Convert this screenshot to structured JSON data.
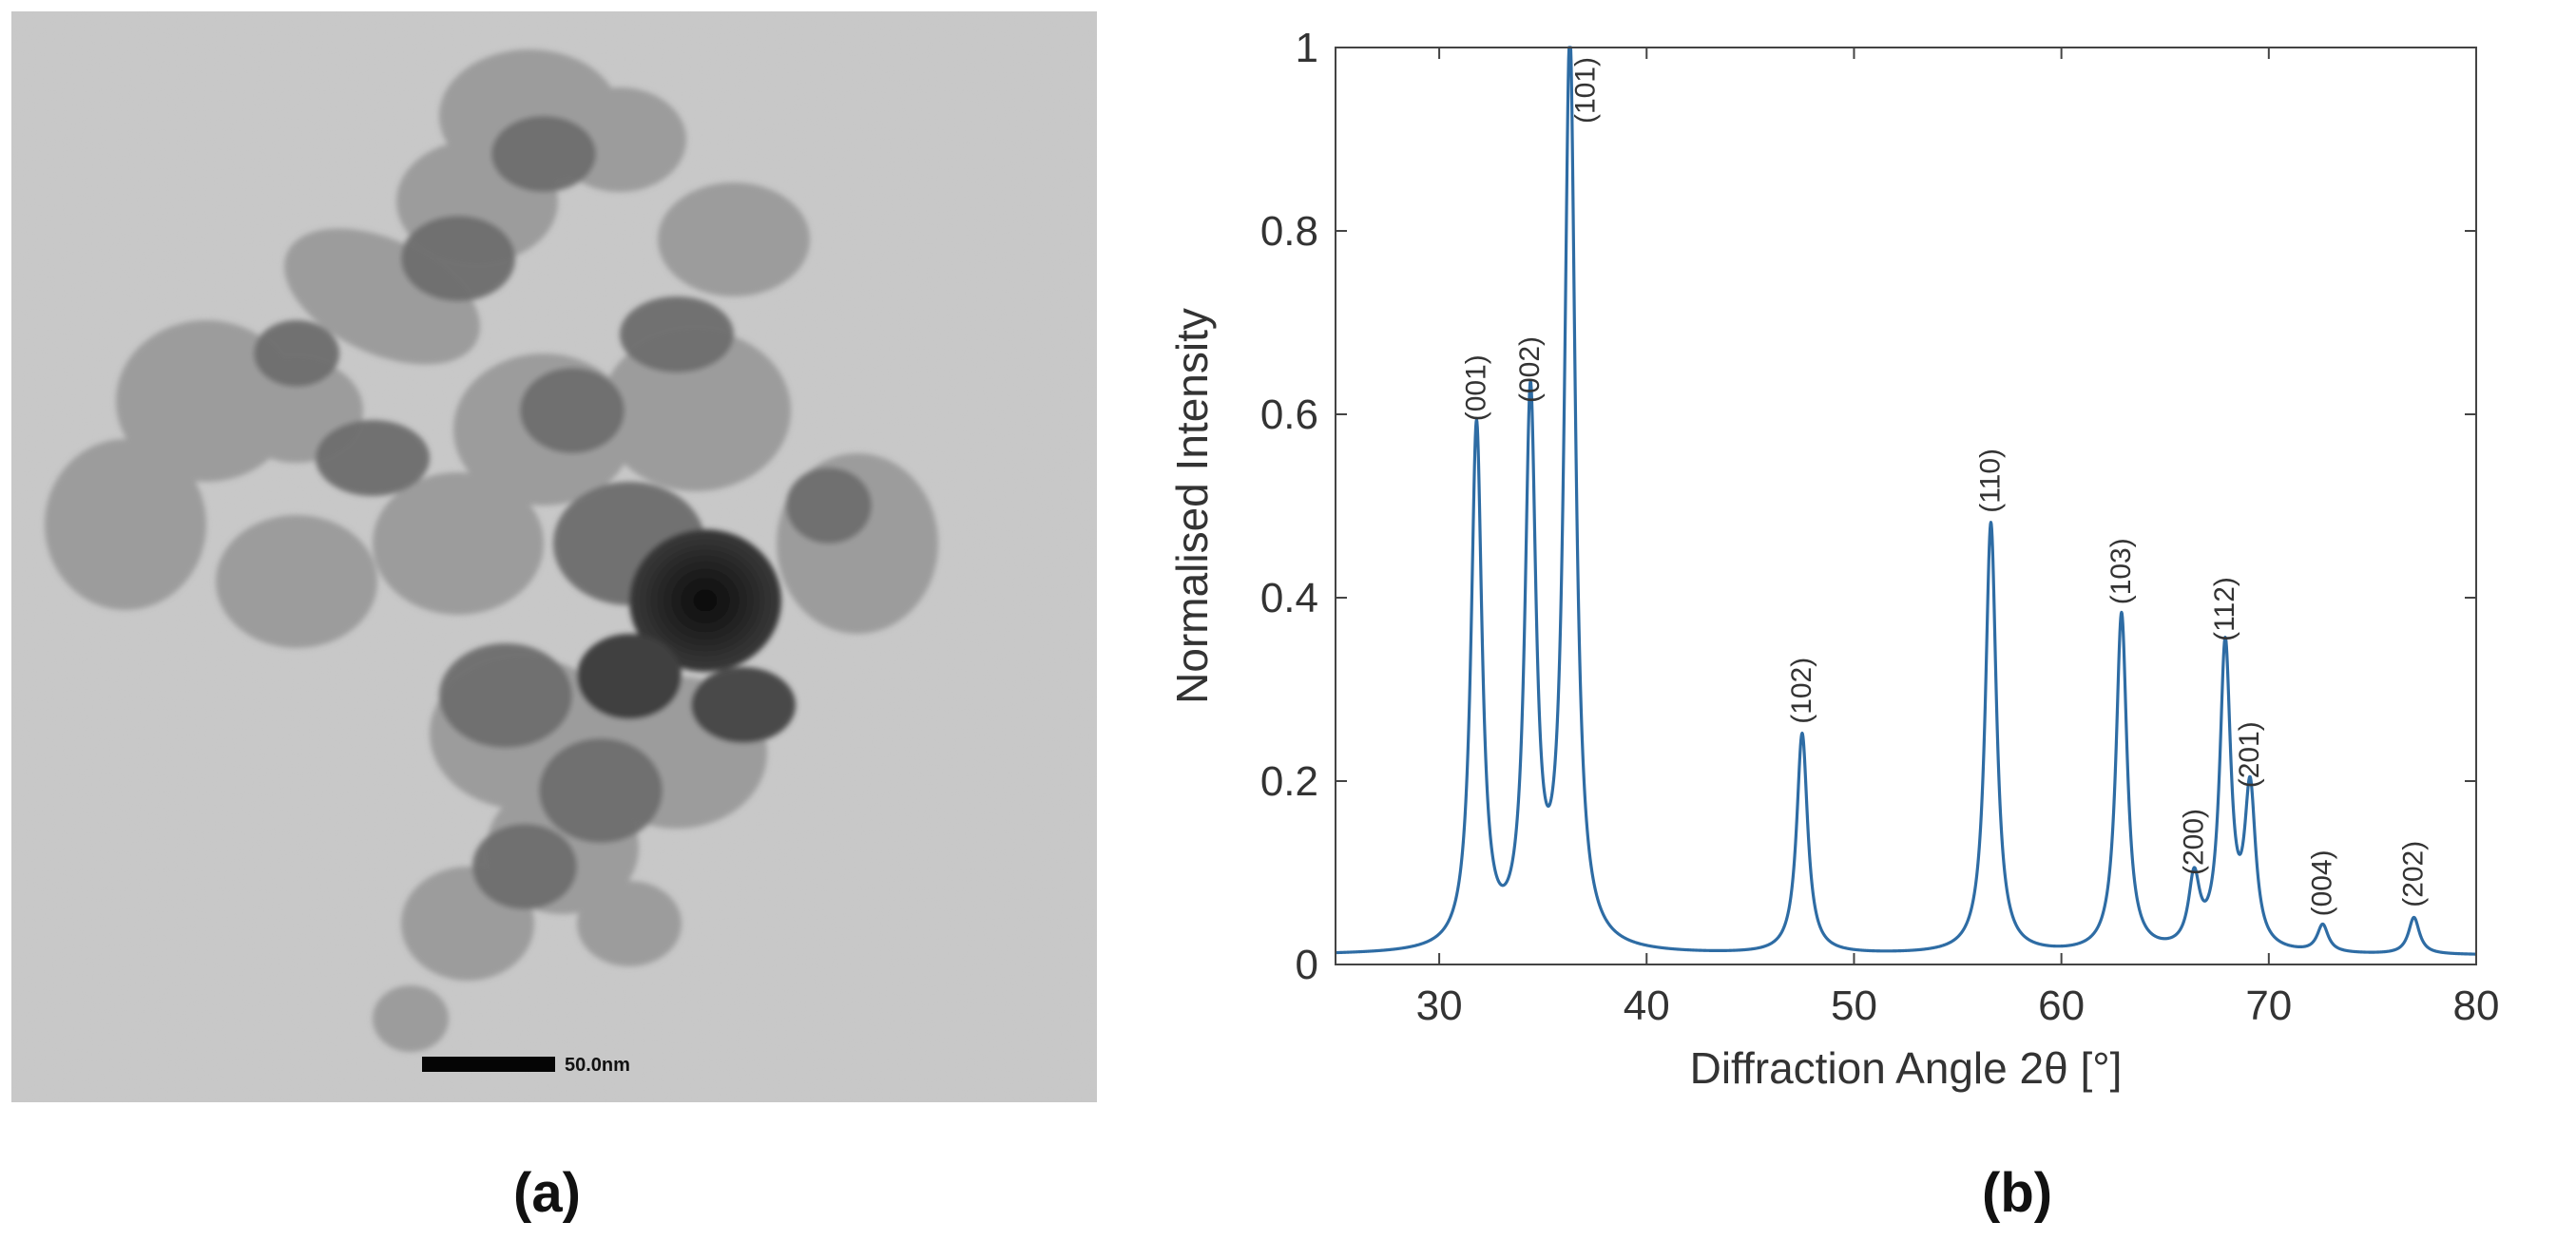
{
  "panels": {
    "a": {
      "label": "(a)",
      "scale_bar_text": "50.0nm"
    },
    "b": {
      "label": "(b)"
    }
  },
  "chart_data": {
    "type": "line",
    "xlabel": "Diffraction Angle 2θ [°]",
    "ylabel": "Normalised Intensity",
    "xlim": [
      25,
      80
    ],
    "ylim": [
      0,
      1
    ],
    "xticks": [
      30,
      40,
      50,
      60,
      70,
      80
    ],
    "yticks": [
      0,
      0.2,
      0.4,
      0.6,
      0.8,
      1
    ],
    "ytick_labels": [
      "0",
      "0.2",
      "0.4",
      "0.6",
      "0.8",
      "1"
    ],
    "grid": false,
    "line_color": "#2e6ca4",
    "baseline": 0.01,
    "peaks": [
      {
        "label": "(001)",
        "x": 31.8,
        "y": 0.58
      },
      {
        "label": "(002)",
        "x": 34.4,
        "y": 0.6
      },
      {
        "label": "(101)",
        "x": 36.3,
        "y": 1.0
      },
      {
        "label": "(102)",
        "x": 47.5,
        "y": 0.25
      },
      {
        "label": "(110)",
        "x": 56.6,
        "y": 0.48
      },
      {
        "label": "(103)",
        "x": 62.9,
        "y": 0.38
      },
      {
        "label": "(200)",
        "x": 66.4,
        "y": 0.085
      },
      {
        "label": "(112)",
        "x": 67.9,
        "y": 0.34
      },
      {
        "label": "(201)",
        "x": 69.1,
        "y": 0.18
      },
      {
        "label": "(004)",
        "x": 72.6,
        "y": 0.04
      },
      {
        "label": "(202)",
        "x": 77.0,
        "y": 0.05
      }
    ]
  }
}
